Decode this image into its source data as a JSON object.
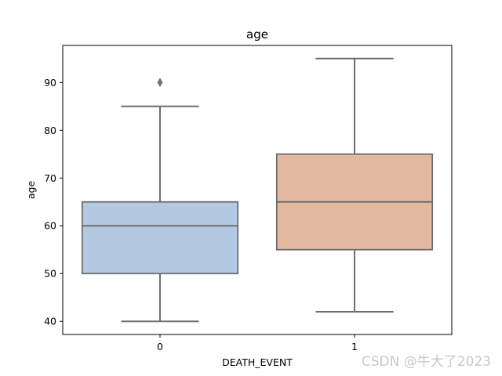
{
  "chart_data": {
    "type": "box",
    "title": "age",
    "xlabel": "DEATH_EVENT",
    "ylabel": "age",
    "categories": [
      "0",
      "1"
    ],
    "boxes": [
      {
        "category": "0",
        "whisker_low": 40,
        "q1": 50,
        "median": 60,
        "q3": 65,
        "whisker_high": 85,
        "outliers": [
          90
        ],
        "color": "#b3c8e1"
      },
      {
        "category": "1",
        "whisker_low": 42,
        "q1": 55,
        "median": 65,
        "q3": 75,
        "whisker_high": 95,
        "outliers": [],
        "color": "#e2b99f"
      }
    ],
    "yticks": [
      40,
      50,
      60,
      70,
      80,
      90
    ],
    "ylim": [
      37.25,
      97.75
    ],
    "grid": false,
    "line_color": "#6e6e6e"
  },
  "watermark": "CSDN @牛大了2023"
}
